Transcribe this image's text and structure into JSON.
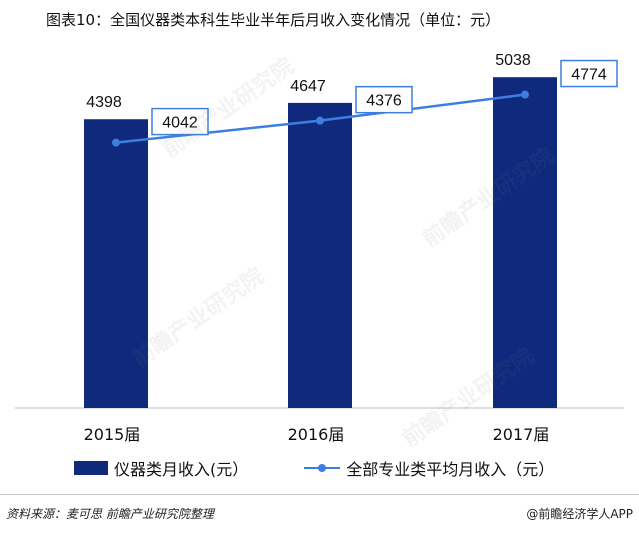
{
  "title": "图表10：全国仪器类本科生毕业半年后月收入变化情况（单位：元）",
  "chart_data": {
    "type": "bar",
    "categories": [
      "2015届",
      "2016届",
      "2017届"
    ],
    "series": [
      {
        "name": "仪器类月收入(元）",
        "kind": "bar",
        "values": [
          4398,
          4647,
          5038
        ],
        "color": "#0f2a7d"
      },
      {
        "name": "全部专业类平均月收入（元）",
        "kind": "line",
        "values": [
          4042,
          4376,
          4774
        ],
        "color": "#3d7fe0"
      }
    ],
    "ylim": [
      0,
      5300
    ],
    "grid": false,
    "legend_position": "bottom"
  },
  "footer": {
    "source": "资料来源：麦可思 前瞻产业研究院整理",
    "brand": "@前瞻经济学人APP"
  },
  "watermark": "前瞻产业研究院"
}
